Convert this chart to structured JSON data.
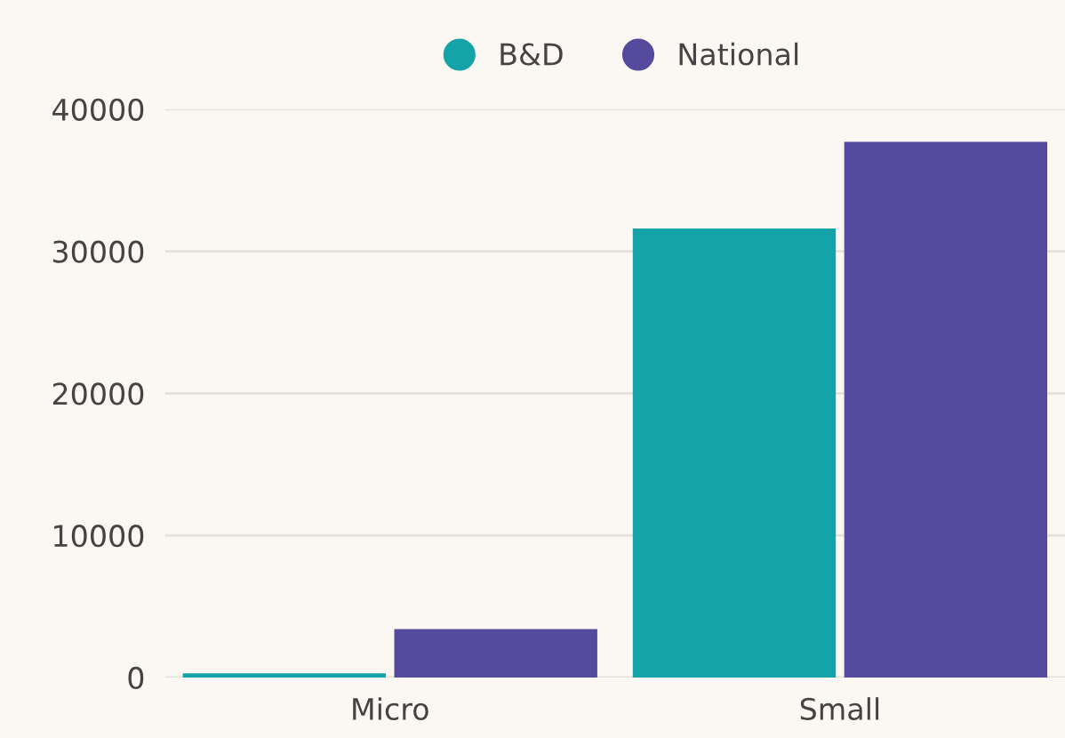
{
  "chart_data": {
    "type": "bar",
    "categories": [
      "Micro",
      "Small"
    ],
    "series": [
      {
        "name": "B&D",
        "color": "#14a3a8",
        "values": [
          300,
          31600
        ]
      },
      {
        "name": "National",
        "color": "#554a9e",
        "values": [
          3400,
          37700
        ]
      }
    ],
    "ylim": [
      0,
      40000
    ],
    "yticks": [
      0,
      10000,
      20000,
      30000,
      40000
    ],
    "grid": "y",
    "legend": "top"
  }
}
